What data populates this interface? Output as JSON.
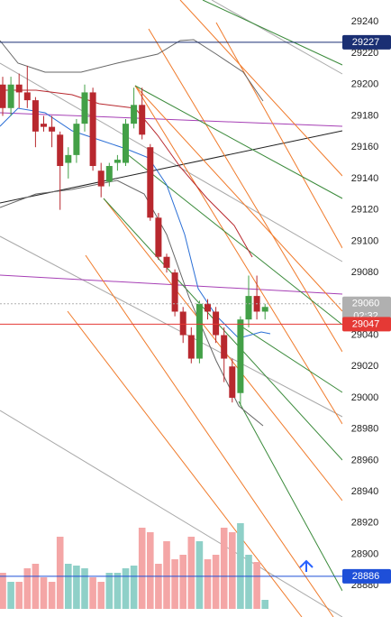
{
  "chart_data": {
    "type": "candlestick",
    "ylim": [
      28860,
      29254
    ],
    "yticks": [
      29240,
      29220,
      29200,
      29180,
      29160,
      29140,
      29120,
      29100,
      29080,
      29060,
      29040,
      29020,
      29000,
      28980,
      28960,
      28940,
      28920,
      28900,
      28880
    ],
    "up_color": "#43a047",
    "down_color": "#b8282e",
    "volume_up_color": "#8fd0c8",
    "volume_down_color": "#f4a6a6",
    "open": [
      29200,
      29185,
      29200,
      29195,
      29190,
      29175,
      29173,
      29168,
      29150,
      29155,
      29175,
      29195,
      29145,
      29138,
      29150,
      29150,
      29175,
      29187,
      29160,
      29115,
      29090,
      29080,
      29055,
      29040,
      29025,
      29060,
      29055,
      29040,
      29020,
      29003,
      29050,
      29065,
      29055
    ],
    "high": [
      29205,
      29205,
      29207,
      29212,
      29192,
      29180,
      29180,
      29170,
      29160,
      29178,
      29200,
      29198,
      29150,
      29150,
      29155,
      29178,
      29198,
      29198,
      29162,
      29118,
      29092,
      29082,
      29058,
      29045,
      29062,
      29063,
      29058,
      29045,
      29025,
      29052,
      29078,
      29078,
      29060
    ],
    "low": [
      29180,
      29180,
      29185,
      29185,
      29160,
      29170,
      29160,
      29120,
      29140,
      29150,
      29170,
      29145,
      29128,
      29135,
      29145,
      29148,
      29172,
      29165,
      29113,
      29088,
      29080,
      29052,
      29035,
      29022,
      29022,
      29050,
      29035,
      29010,
      28997,
      28995,
      29045,
      29050,
      29050
    ],
    "close": [
      29185,
      29200,
      29195,
      29190,
      29170,
      29173,
      29170,
      29148,
      29155,
      29175,
      29195,
      29148,
      29135,
      29148,
      29152,
      29175,
      29187,
      29168,
      29115,
      29090,
      29083,
      29055,
      29040,
      29025,
      29060,
      29055,
      29040,
      29025,
      29000,
      29050,
      29065,
      29055,
      29058
    ],
    "volume": [
      40,
      30,
      30,
      45,
      50,
      35,
      30,
      80,
      50,
      48,
      45,
      35,
      30,
      40,
      40,
      45,
      48,
      90,
      85,
      50,
      75,
      55,
      60,
      80,
      75,
      55,
      60,
      90,
      85,
      95,
      60,
      52,
      10
    ],
    "price_labels": [
      {
        "value": 29227,
        "color": "#1a2f73"
      },
      {
        "value": 29060,
        "color": "#b0b0b0",
        "countdown": "02:32"
      },
      {
        "value": 29047,
        "color": "#e53935"
      },
      {
        "value": 28886,
        "color": "#1e4fd8"
      }
    ]
  }
}
